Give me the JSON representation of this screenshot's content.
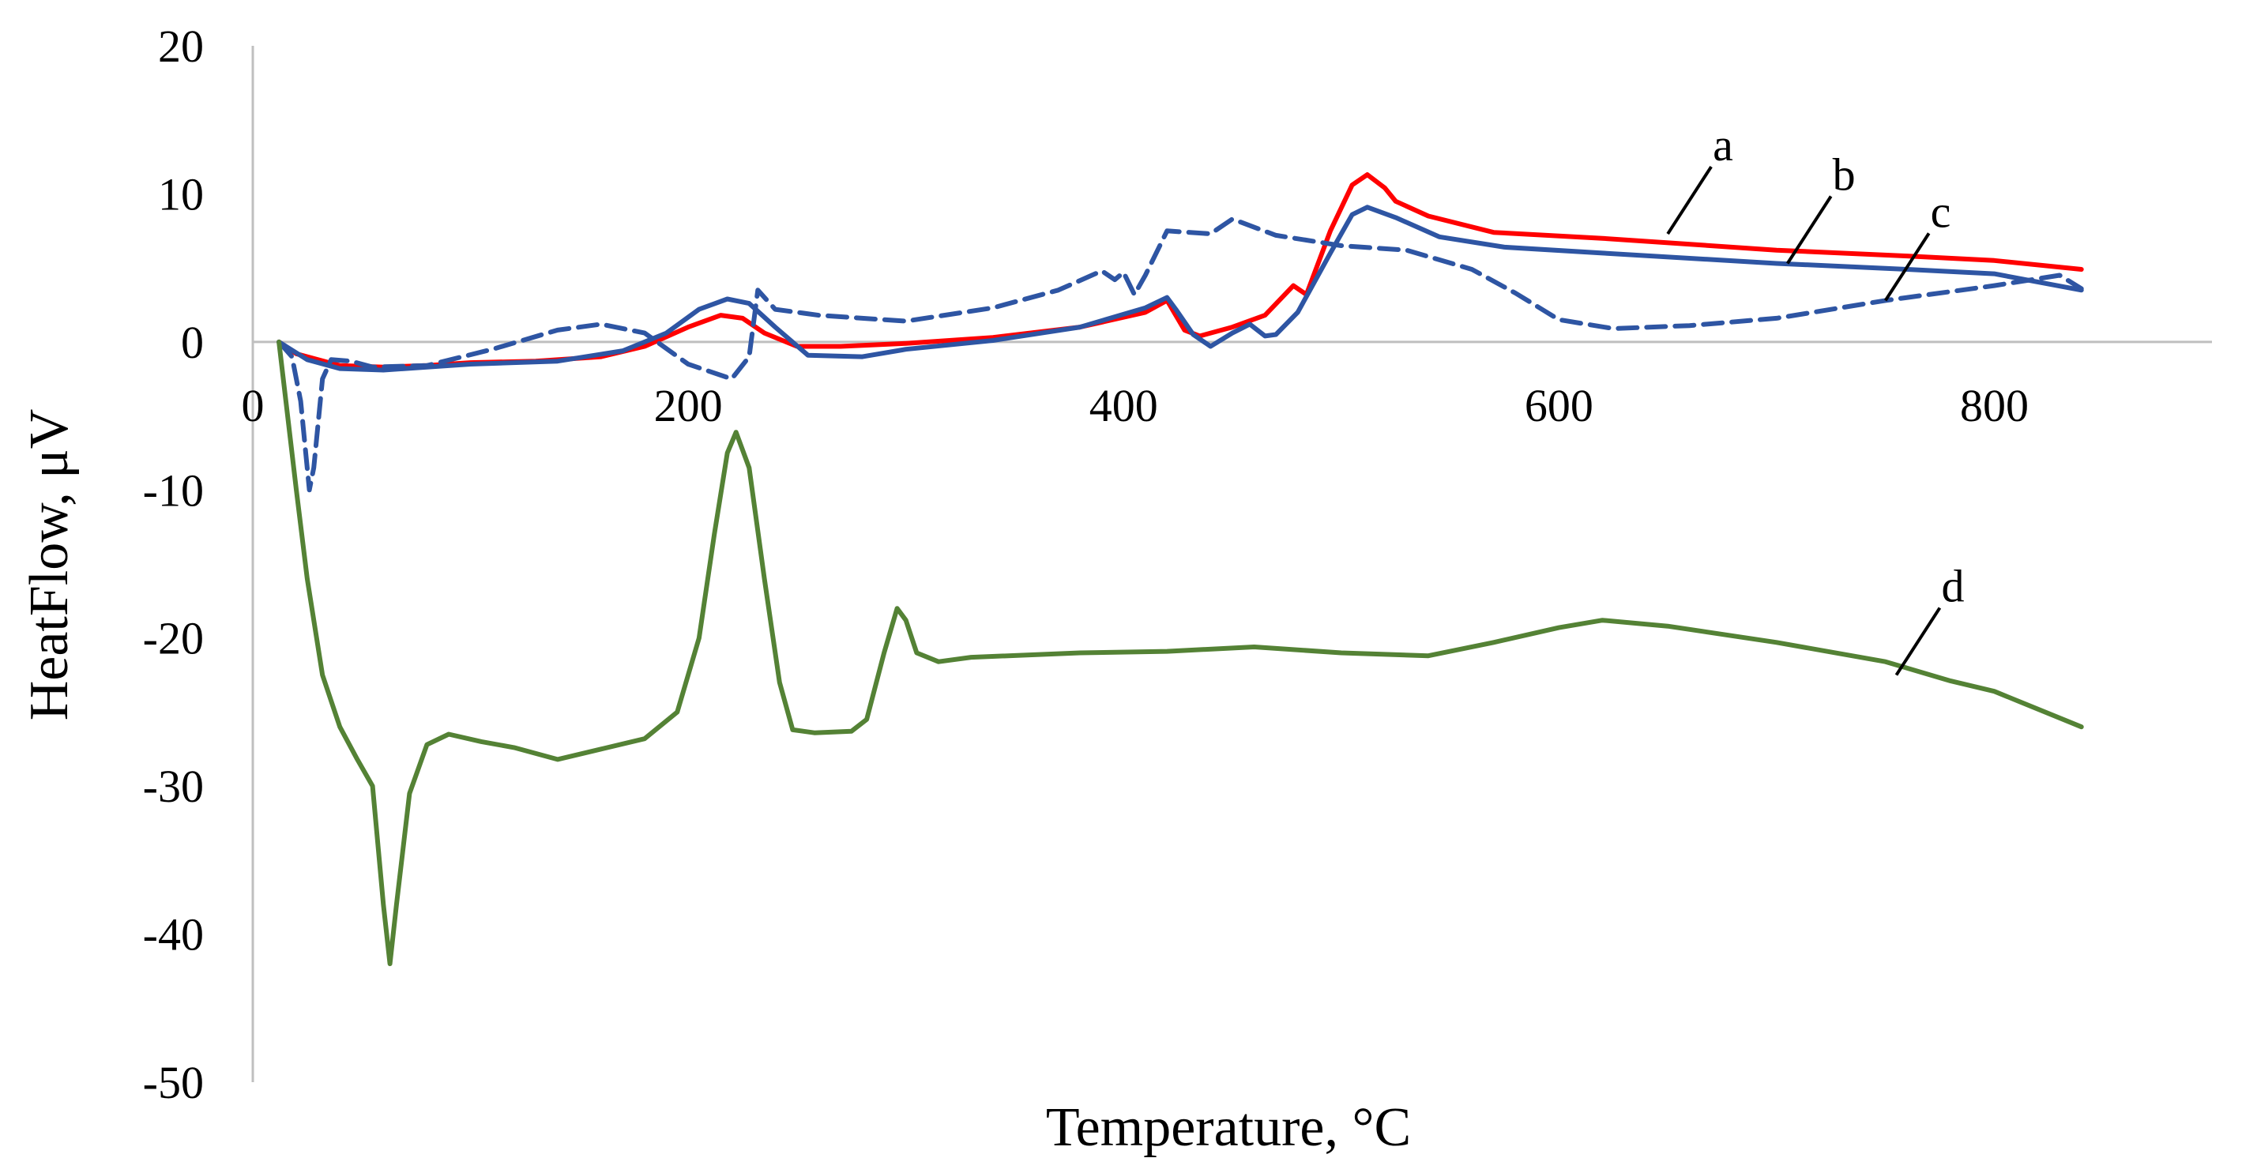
{
  "chart_data": {
    "type": "line",
    "title": "",
    "xlabel": "Temperature, °C",
    "ylabel": "HeatFlow, μV",
    "xlim": [
      0,
      900
    ],
    "ylim": [
      -50,
      20
    ],
    "x_ticks": [
      0,
      200,
      400,
      600,
      800
    ],
    "y_ticks": [
      20,
      10,
      0,
      -10,
      -20,
      -30,
      -40,
      -50
    ],
    "grid": false,
    "legend": "none",
    "series": [
      {
        "name": "a",
        "color": "#ff0000",
        "dash": "solid",
        "points": [
          [
            12,
            0
          ],
          [
            20,
            -0.8
          ],
          [
            40,
            -1.6
          ],
          [
            60,
            -1.7
          ],
          [
            80,
            -1.6
          ],
          [
            100,
            -1.4
          ],
          [
            130,
            -1.3
          ],
          [
            160,
            -1.0
          ],
          [
            180,
            -0.3
          ],
          [
            200,
            1.0
          ],
          [
            215,
            1.8
          ],
          [
            225,
            1.6
          ],
          [
            235,
            0.6
          ],
          [
            250,
            -0.3
          ],
          [
            270,
            -0.3
          ],
          [
            300,
            -0.1
          ],
          [
            340,
            0.3
          ],
          [
            380,
            1.0
          ],
          [
            410,
            2.0
          ],
          [
            420,
            2.8
          ],
          [
            428,
            0.8
          ],
          [
            435,
            0.4
          ],
          [
            450,
            1.0
          ],
          [
            465,
            1.8
          ],
          [
            478,
            3.8
          ],
          [
            484,
            3.2
          ],
          [
            495,
            7.5
          ],
          [
            505,
            10.6
          ],
          [
            512,
            11.3
          ],
          [
            520,
            10.4
          ],
          [
            525,
            9.5
          ],
          [
            540,
            8.5
          ],
          [
            570,
            7.4
          ],
          [
            620,
            7.0
          ],
          [
            700,
            6.2
          ],
          [
            760,
            5.8
          ],
          [
            800,
            5.5
          ],
          [
            840,
            4.9
          ]
        ],
        "label_x": 650,
        "label_y": 7.3
      },
      {
        "name": "b",
        "color": "#2e55a3",
        "dash": "solid",
        "points": [
          [
            12,
            0
          ],
          [
            25,
            -1.2
          ],
          [
            40,
            -1.8
          ],
          [
            60,
            -1.9
          ],
          [
            80,
            -1.7
          ],
          [
            100,
            -1.5
          ],
          [
            140,
            -1.3
          ],
          [
            170,
            -0.6
          ],
          [
            190,
            0.6
          ],
          [
            205,
            2.2
          ],
          [
            218,
            2.9
          ],
          [
            228,
            2.6
          ],
          [
            240,
            1.0
          ],
          [
            255,
            -0.9
          ],
          [
            280,
            -1.0
          ],
          [
            300,
            -0.5
          ],
          [
            340,
            0.1
          ],
          [
            380,
            1.0
          ],
          [
            410,
            2.3
          ],
          [
            420,
            3.0
          ],
          [
            424,
            2.2
          ],
          [
            432,
            0.5
          ],
          [
            440,
            -0.3
          ],
          [
            450,
            0.6
          ],
          [
            458,
            1.2
          ],
          [
            465,
            0.4
          ],
          [
            470,
            0.5
          ],
          [
            480,
            2.0
          ],
          [
            495,
            6.0
          ],
          [
            505,
            8.6
          ],
          [
            512,
            9.1
          ],
          [
            525,
            8.4
          ],
          [
            545,
            7.1
          ],
          [
            575,
            6.4
          ],
          [
            620,
            6.0
          ],
          [
            700,
            5.3
          ],
          [
            760,
            4.9
          ],
          [
            800,
            4.6
          ],
          [
            840,
            3.5
          ]
        ],
        "label_x": 705,
        "label_y": 5.3
      },
      {
        "name": "c",
        "color": "#2e55a3",
        "dash": "dashed",
        "points": [
          [
            12,
            0
          ],
          [
            18,
            -1.0
          ],
          [
            22,
            -4.0
          ],
          [
            26,
            -10.0
          ],
          [
            28,
            -8.5
          ],
          [
            32,
            -2.5
          ],
          [
            36,
            -1.2
          ],
          [
            45,
            -1.3
          ],
          [
            55,
            -1.7
          ],
          [
            80,
            -1.6
          ],
          [
            110,
            -0.5
          ],
          [
            140,
            0.8
          ],
          [
            160,
            1.2
          ],
          [
            180,
            0.6
          ],
          [
            200,
            -1.5
          ],
          [
            220,
            -2.5
          ],
          [
            228,
            -1.0
          ],
          [
            232,
            3.5
          ],
          [
            240,
            2.2
          ],
          [
            260,
            1.8
          ],
          [
            300,
            1.4
          ],
          [
            340,
            2.3
          ],
          [
            370,
            3.5
          ],
          [
            390,
            4.8
          ],
          [
            396,
            4.2
          ],
          [
            400,
            4.7
          ],
          [
            405,
            3.2
          ],
          [
            410,
            4.5
          ],
          [
            420,
            7.5
          ],
          [
            440,
            7.3
          ],
          [
            450,
            8.3
          ],
          [
            470,
            7.2
          ],
          [
            500,
            6.5
          ],
          [
            530,
            6.2
          ],
          [
            560,
            4.9
          ],
          [
            580,
            3.3
          ],
          [
            600,
            1.5
          ],
          [
            625,
            0.9
          ],
          [
            660,
            1.1
          ],
          [
            700,
            1.6
          ],
          [
            750,
            2.8
          ],
          [
            800,
            3.8
          ],
          [
            830,
            4.5
          ],
          [
            840,
            3.6
          ]
        ],
        "label_x": 750,
        "label_y": 2.8
      },
      {
        "name": "d",
        "color": "#548235",
        "dash": "solid",
        "points": [
          [
            12,
            0
          ],
          [
            20,
            -10.0
          ],
          [
            25,
            -16.0
          ],
          [
            32,
            -22.5
          ],
          [
            40,
            -26.0
          ],
          [
            48,
            -28.2
          ],
          [
            55,
            -30.0
          ],
          [
            60,
            -38.0
          ],
          [
            63,
            -42.0
          ],
          [
            66,
            -38.0
          ],
          [
            72,
            -30.5
          ],
          [
            80,
            -27.2
          ],
          [
            90,
            -26.5
          ],
          [
            105,
            -27.0
          ],
          [
            120,
            -27.4
          ],
          [
            140,
            -28.2
          ],
          [
            160,
            -27.5
          ],
          [
            180,
            -26.8
          ],
          [
            195,
            -25.0
          ],
          [
            205,
            -20.0
          ],
          [
            212,
            -13.0
          ],
          [
            218,
            -7.5
          ],
          [
            222,
            -6.1
          ],
          [
            228,
            -8.5
          ],
          [
            235,
            -16.0
          ],
          [
            242,
            -23.0
          ],
          [
            248,
            -26.2
          ],
          [
            258,
            -26.4
          ],
          [
            275,
            -26.3
          ],
          [
            282,
            -25.5
          ],
          [
            290,
            -21.0
          ],
          [
            296,
            -18.0
          ],
          [
            300,
            -18.8
          ],
          [
            305,
            -21.0
          ],
          [
            315,
            -21.6
          ],
          [
            330,
            -21.3
          ],
          [
            380,
            -21.0
          ],
          [
            420,
            -20.9
          ],
          [
            460,
            -20.6
          ],
          [
            500,
            -21.0
          ],
          [
            540,
            -21.2
          ],
          [
            570,
            -20.3
          ],
          [
            600,
            -19.3
          ],
          [
            620,
            -18.8
          ],
          [
            650,
            -19.2
          ],
          [
            700,
            -20.3
          ],
          [
            750,
            -21.6
          ],
          [
            780,
            -22.9
          ],
          [
            800,
            -23.6
          ],
          [
            840,
            -26.0
          ]
        ],
        "label_x": 755,
        "label_y": -22.5
      }
    ]
  }
}
